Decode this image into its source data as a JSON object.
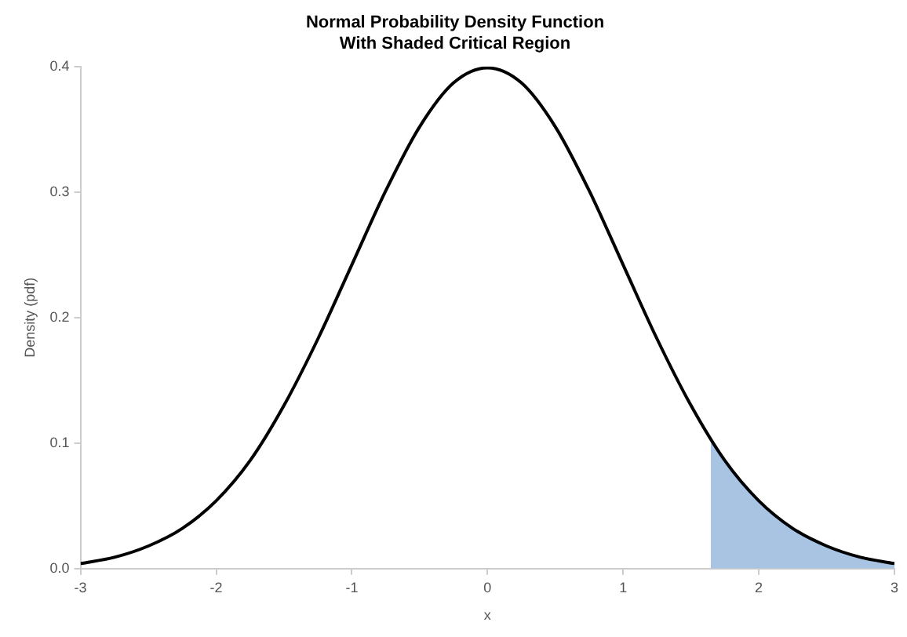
{
  "chart_data": {
    "type": "line",
    "title": "Normal Probability Density Function",
    "subtitle": "With Shaded Critical Region",
    "xlabel": "x",
    "ylabel": "Density (pdf)",
    "series": [
      {
        "color": "#000000",
        "x": [
          -3,
          -2.75,
          -2.5,
          -2.25,
          -2,
          -1.75,
          -1.5,
          -1.25,
          -1,
          -0.75,
          -0.5,
          -0.25,
          0,
          0.25,
          0.5,
          0.75,
          1,
          1.25,
          1.5,
          1.75,
          2,
          2.25,
          2.5,
          2.75,
          3
        ],
        "values": [
          0.004,
          0.009,
          0.018,
          0.032,
          0.054,
          0.086,
          0.13,
          0.183,
          0.242,
          0.301,
          0.352,
          0.387,
          0.399,
          0.387,
          0.352,
          0.301,
          0.242,
          0.183,
          0.13,
          0.086,
          0.054,
          0.032,
          0.018,
          0.009,
          0.004
        ]
      },
      {
        "type": "area",
        "color": "#a9c4e2",
        "x": [
          1.645,
          1.75,
          2,
          2.25,
          2.5,
          2.75,
          3
        ],
        "values": [
          0.103,
          0.086,
          0.054,
          0.032,
          0.018,
          0.009,
          0.004
        ]
      }
    ],
    "xlim": [
      -3,
      3
    ],
    "xticks": [
      -3,
      -2,
      -1,
      0,
      1,
      2,
      3
    ],
    "ylim": [
      0,
      0.4
    ],
    "yticks": [
      {
        "value": 0,
        "label": "0.0"
      },
      0.1,
      0.2,
      0.3,
      0.4
    ],
    "grid": false,
    "legend": false,
    "marker": "none",
    "line_style": "solid"
  }
}
